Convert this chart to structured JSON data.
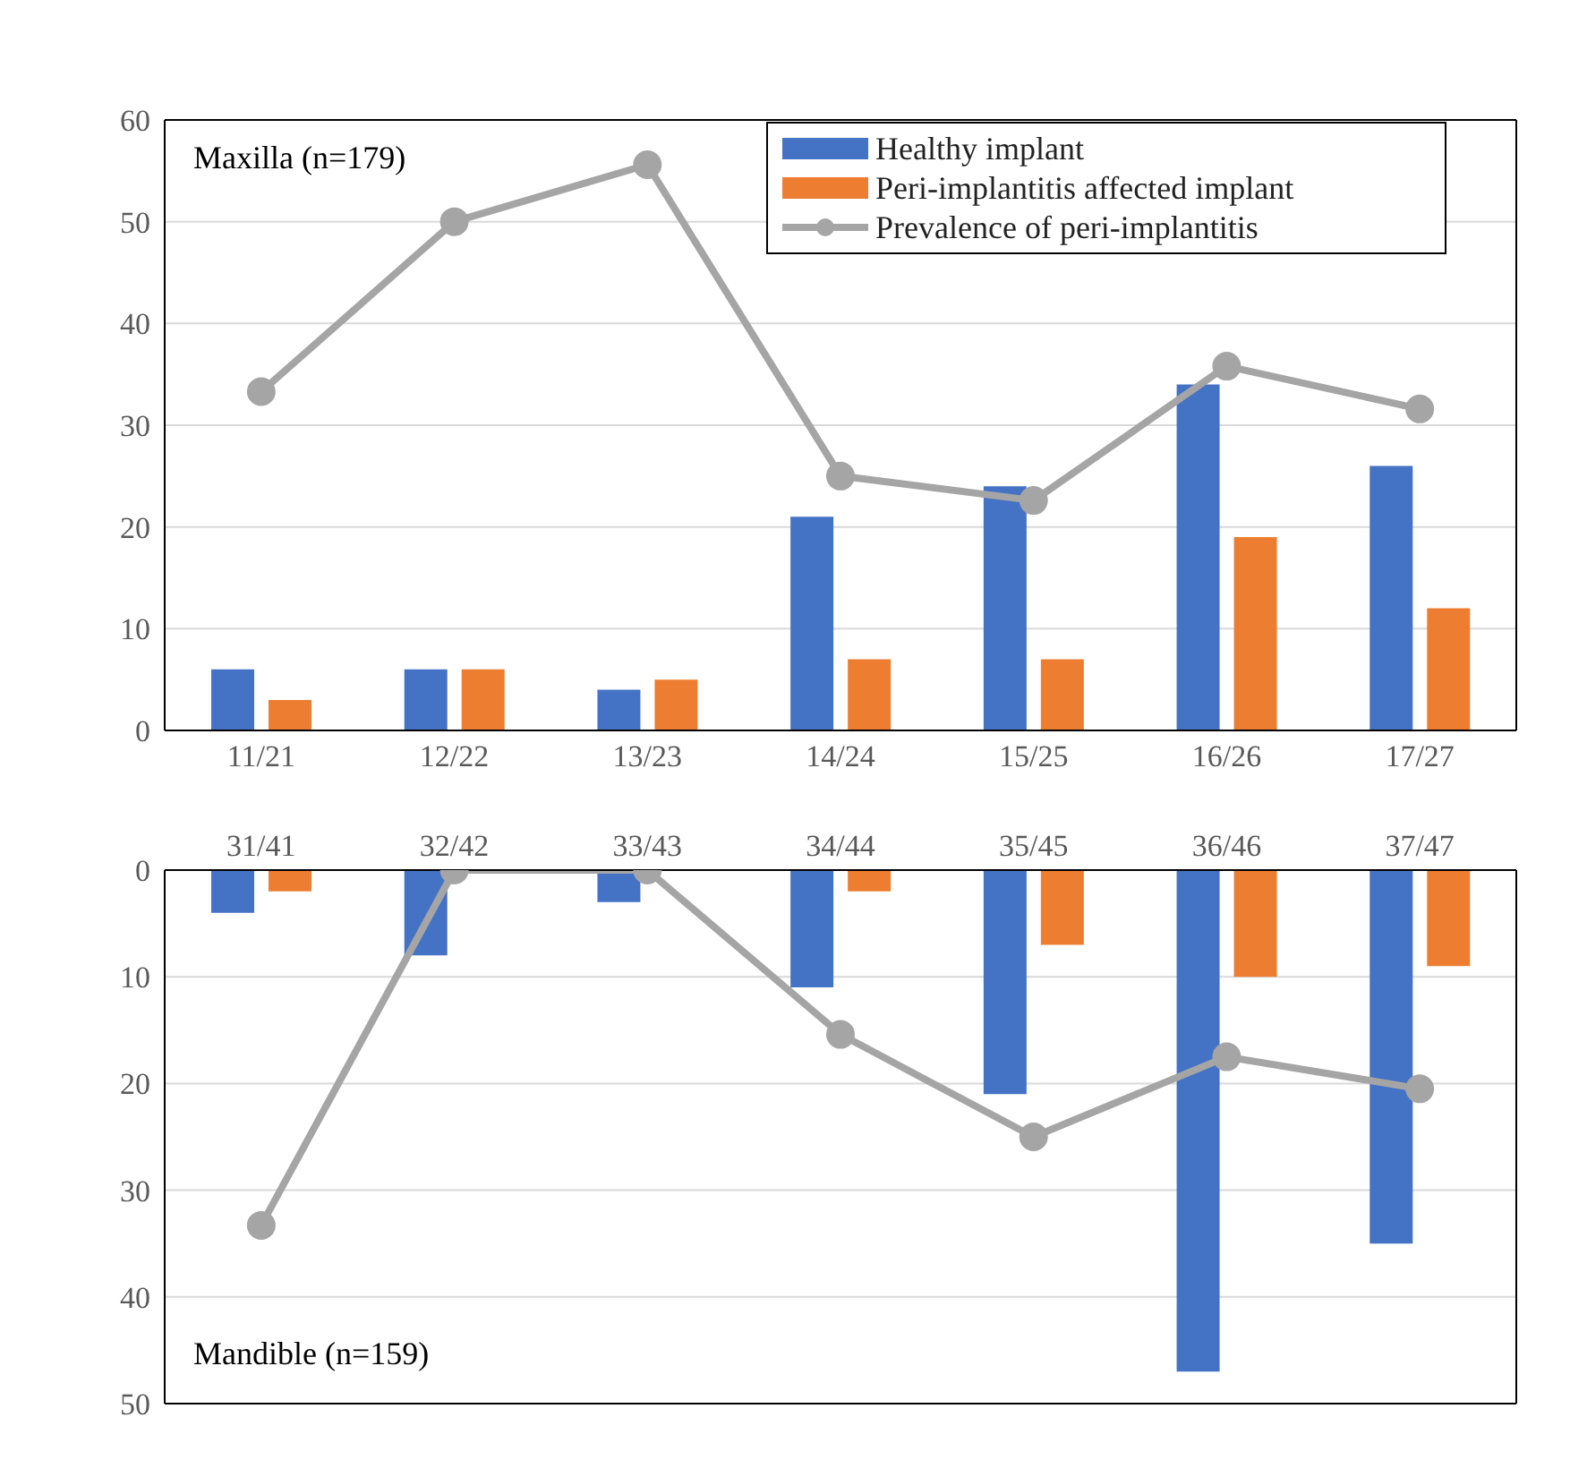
{
  "chart_data": [
    {
      "type": "bar",
      "annotations": [
        "Maxilla (n=179)"
      ],
      "categories": [
        "11/21",
        "12/22",
        "13/23",
        "14/24",
        "15/25",
        "16/26",
        "17/27"
      ],
      "series": [
        {
          "name": "Healthy implant",
          "color": "#4472c4",
          "values": [
            6,
            6,
            4,
            21,
            24,
            34,
            26
          ]
        },
        {
          "name": "Peri-implantitis affected implant",
          "color": "#ed7d31",
          "values": [
            3,
            6,
            5,
            7,
            7,
            19,
            12
          ]
        },
        {
          "name": "Prevalence of peri-implantitis",
          "type": "line",
          "color": "#a5a5a5",
          "values": [
            33.3,
            50,
            55.6,
            25,
            22.6,
            35.8,
            31.6
          ]
        }
      ],
      "ylim": [
        0,
        60
      ],
      "yticks": [
        0,
        10,
        20,
        30,
        40,
        50,
        60
      ],
      "grid": "y",
      "legend": "top right",
      "marker": "circle"
    },
    {
      "type": "bar",
      "annotations": [
        "Mandible (n=159)"
      ],
      "categories": [
        "31/41",
        "32/42",
        "33/43",
        "34/44",
        "35/45",
        "36/46",
        "37/47"
      ],
      "series": [
        {
          "color": "#4472c4",
          "values": [
            4,
            8,
            3,
            11,
            21,
            47,
            35
          ]
        },
        {
          "color": "#ed7d31",
          "values": [
            2,
            0,
            0,
            2,
            7,
            10,
            9
          ]
        },
        {
          "type": "line",
          "color": "#a5a5a5",
          "values": [
            33.3,
            0,
            0,
            15.4,
            25,
            17.5,
            20.5
          ]
        }
      ],
      "ylim": [
        50,
        0
      ],
      "yticks": [
        0,
        10,
        20,
        30,
        40,
        50
      ],
      "grid": "y",
      "legend": false,
      "marker": "circle"
    }
  ]
}
